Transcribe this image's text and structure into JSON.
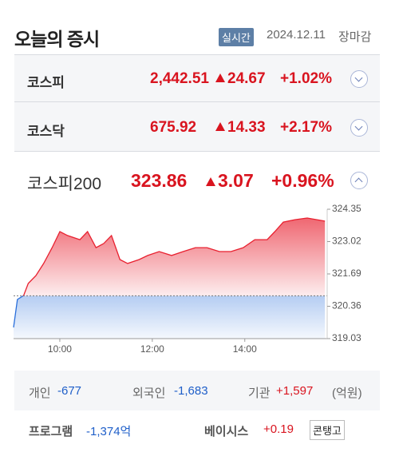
{
  "header": {
    "title": "오늘의 증시",
    "badge": "실시간",
    "date": "2024.12.11",
    "status": "장마감"
  },
  "indices": [
    {
      "name": "코스피",
      "value": "2,442.51",
      "change": "24.67",
      "rate": "+1.02%"
    },
    {
      "name": "코스닥",
      "value": "675.92",
      "change": "14.33",
      "rate": "+2.17%"
    }
  ],
  "featured": {
    "name": "코스피200",
    "value": "323.86",
    "change": "3.07",
    "rate": "+0.96%"
  },
  "chart_data": {
    "type": "line",
    "x": [
      540,
      545,
      553,
      559,
      569,
      579,
      590,
      600,
      610,
      626,
      636,
      647,
      657,
      667,
      678,
      688,
      703,
      714,
      729,
      745,
      760,
      776,
      791,
      807,
      822,
      838,
      853,
      869,
      879,
      890,
      905,
      921,
      944
    ],
    "values": [
      319.49,
      320.64,
      320.8,
      321.3,
      321.62,
      322.12,
      322.77,
      323.43,
      323.27,
      323.1,
      323.43,
      322.77,
      322.94,
      323.27,
      322.28,
      322.12,
      322.28,
      322.45,
      322.61,
      322.45,
      322.61,
      322.77,
      322.77,
      322.61,
      322.61,
      322.77,
      323.1,
      323.1,
      323.43,
      323.82,
      323.92,
      323.99,
      323.86
    ],
    "xlim": [
      540,
      950
    ],
    "ylim": [
      319.03,
      324.35
    ],
    "xticks": [
      {
        "value": 600,
        "label": "10:00"
      },
      {
        "value": 720,
        "label": "12:00"
      },
      {
        "value": 840,
        "label": "14:00"
      }
    ],
    "yticks": [
      319.03,
      320.36,
      321.69,
      323.02,
      324.35
    ],
    "reference": 320.79,
    "color": "#e8202f",
    "color_below": "#2a6fdb"
  },
  "investors": {
    "items": [
      {
        "label": "개인",
        "value": "-677"
      },
      {
        "label": "외국인",
        "value": "-1,683"
      },
      {
        "label": "기관",
        "value": "+1,597"
      }
    ],
    "unit": "(억원)"
  },
  "program": {
    "label": "프로그램",
    "value": "-1,374억",
    "basis_label": "베이시스",
    "basis_value": "+0.19",
    "state": "콘탱고"
  }
}
